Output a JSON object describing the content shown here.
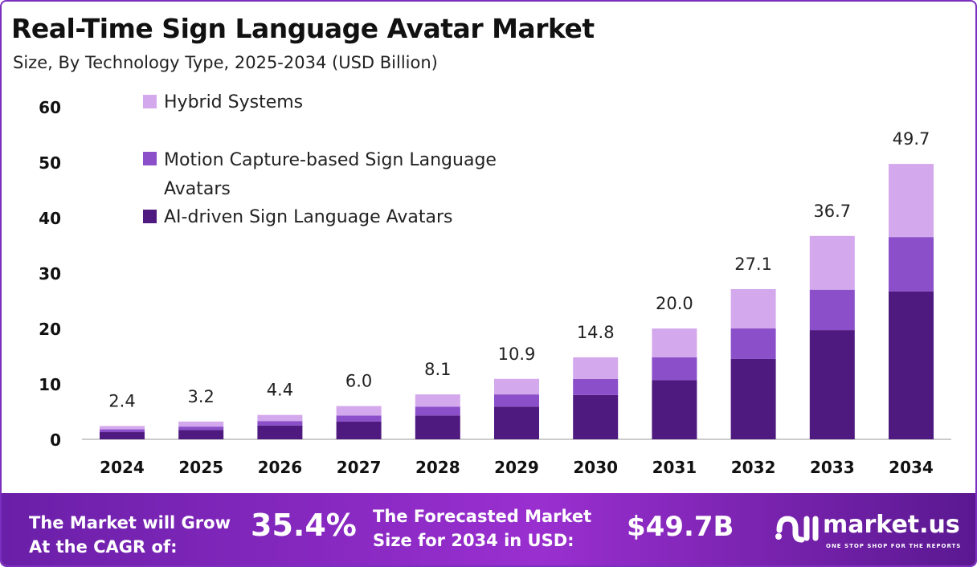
{
  "chart_data": {
    "type": "bar",
    "stacked": true,
    "title": "Real-Time Sign Language Avatar Market",
    "subtitle": "Size, By Technology Type, 2025-2034 (USD Billion)",
    "categories": [
      "2024",
      "2025",
      "2026",
      "2027",
      "2028",
      "2029",
      "2030",
      "2031",
      "2032",
      "2033",
      "2034"
    ],
    "series": [
      {
        "name": "AI-driven Sign Language Avatars",
        "color": "#4f1a80",
        "values": [
          1.3,
          1.7,
          2.5,
          3.2,
          4.3,
          5.9,
          8.0,
          10.7,
          14.5,
          19.7,
          26.7
        ]
      },
      {
        "name": "Motion Capture-based Sign Language Avatars",
        "color": "#8b4fc9",
        "values": [
          0.5,
          0.6,
          0.8,
          1.1,
          1.6,
          2.2,
          2.9,
          4.1,
          5.5,
          7.3,
          9.8
        ]
      },
      {
        "name": "Hybrid Systems",
        "color": "#d4a8ec",
        "values": [
          0.6,
          0.9,
          1.1,
          1.7,
          2.2,
          2.8,
          3.9,
          5.2,
          7.1,
          9.7,
          13.2
        ]
      }
    ],
    "totals": [
      "2.4",
      "3.2",
      "4.4",
      "6.0",
      "8.1",
      "10.9",
      "14.8",
      "20.0",
      "27.1",
      "36.7",
      "49.7"
    ],
    "yticks": [
      "0",
      "10",
      "20",
      "30",
      "40",
      "50",
      "60"
    ],
    "ylim": [
      0,
      60
    ],
    "grid": false,
    "legend_position": "top-left"
  },
  "legend": {
    "hybrid": "Hybrid Systems",
    "motion_line1": "Motion Capture-based Sign Language",
    "motion_line2": "Avatars",
    "ai": "AI-driven Sign Language Avatars"
  },
  "footer": {
    "cagr_label_1": "The Market will Grow",
    "cagr_label_2": "At the CAGR of:",
    "cagr_value": "35.4%",
    "forecast_label_1": "The Forecasted Market",
    "forecast_label_2": "Size for 2034 in USD:",
    "forecast_value": "$49.7B",
    "brand": "market.us",
    "tagline": "ONE STOP SHOP FOR THE REPORTS"
  }
}
